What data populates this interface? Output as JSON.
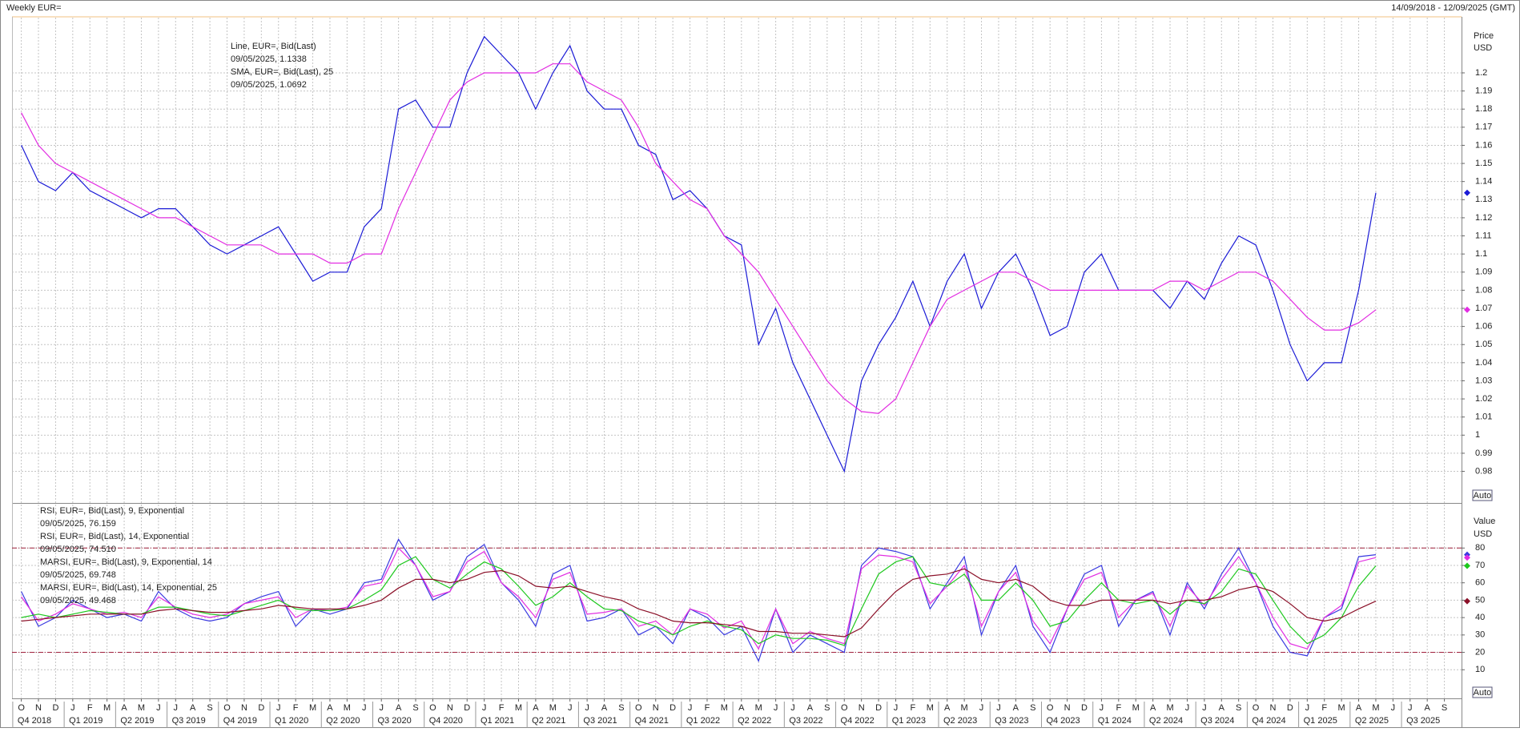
{
  "chart_data": [
    {
      "type": "line",
      "title": "Weekly EUR=",
      "subtitle": "14/09/2018 - 12/09/2025 (GMT)",
      "y_axis_title": "Price",
      "y_axis_unit": "USD",
      "scale_label": "Auto",
      "grid": true,
      "categories": [
        "O",
        "N",
        "D",
        "J",
        "F",
        "M",
        "A",
        "M",
        "J",
        "J",
        "A",
        "S",
        "O",
        "N",
        "D",
        "J",
        "F",
        "M",
        "A",
        "M",
        "J",
        "J",
        "A",
        "S",
        "O",
        "N",
        "D",
        "J",
        "F",
        "M",
        "A",
        "M",
        "J",
        "J",
        "A",
        "S",
        "O",
        "N",
        "D",
        "J",
        "F",
        "M",
        "A",
        "M",
        "J",
        "J",
        "A",
        "S",
        "O",
        "N",
        "D",
        "J",
        "F",
        "M",
        "A",
        "M",
        "J",
        "J",
        "A",
        "S",
        "O",
        "N",
        "D",
        "J",
        "F",
        "M",
        "A",
        "M",
        "J",
        "J",
        "A",
        "S",
        "O",
        "N",
        "D",
        "J",
        "F",
        "M",
        "A",
        "M",
        "J",
        "J",
        "A",
        "S"
      ],
      "quarters": [
        "Q4 2018",
        "Q1 2019",
        "Q2 2019",
        "Q3 2019",
        "Q4 2019",
        "Q1 2020",
        "Q2 2020",
        "Q3 2020",
        "Q4 2020",
        "Q1 2021",
        "Q2 2021",
        "Q3 2021",
        "Q4 2021",
        "Q1 2022",
        "Q2 2022",
        "Q3 2022",
        "Q4 2022",
        "Q1 2023",
        "Q2 2023",
        "Q3 2023",
        "Q4 2023",
        "Q1 2024",
        "Q2 2024",
        "Q3 2024",
        "Q4 2024",
        "Q1 2025",
        "Q2 2025",
        "Q3 2025"
      ],
      "ylim": [
        0.963,
        1.2305
      ],
      "yticks": [
        0.98,
        0.99,
        1,
        1.01,
        1.02,
        1.03,
        1.04,
        1.05,
        1.06,
        1.07,
        1.08,
        1.09,
        1.1,
        1.11,
        1.12,
        1.13,
        1.14,
        1.15,
        1.16,
        1.17,
        1.18,
        1.19,
        1.2
      ],
      "series": [
        {
          "name": "Line, EUR=, Bid(Last)",
          "last_label": "09/05/2025, 1.1338",
          "color": "#1a1ad6",
          "values": [
            1.16,
            1.14,
            1.135,
            1.145,
            1.135,
            1.13,
            1.125,
            1.12,
            1.125,
            1.125,
            1.115,
            1.105,
            1.1,
            1.105,
            1.11,
            1.115,
            1.1,
            1.085,
            1.09,
            1.09,
            1.115,
            1.125,
            1.18,
            1.185,
            1.17,
            1.17,
            1.2,
            1.22,
            1.21,
            1.2,
            1.18,
            1.2,
            1.215,
            1.19,
            1.18,
            1.18,
            1.16,
            1.155,
            1.13,
            1.135,
            1.125,
            1.11,
            1.105,
            1.05,
            1.07,
            1.04,
            1.02,
            1.0,
            0.98,
            1.03,
            1.05,
            1.065,
            1.085,
            1.06,
            1.085,
            1.1,
            1.07,
            1.09,
            1.1,
            1.08,
            1.055,
            1.06,
            1.09,
            1.1,
            1.08,
            1.08,
            1.08,
            1.07,
            1.085,
            1.075,
            1.095,
            1.11,
            1.105,
            1.08,
            1.05,
            1.03,
            1.04,
            1.04,
            1.08,
            1.1338,
            null,
            null,
            null,
            null
          ]
        },
        {
          "name": "SMA, EUR=, Bid(Last),  25",
          "last_label": "09/05/2025, 1.0692",
          "color": "#e22de2",
          "values": [
            1.178,
            1.16,
            1.15,
            1.145,
            1.14,
            1.135,
            1.13,
            1.125,
            1.12,
            1.12,
            1.115,
            1.11,
            1.105,
            1.105,
            1.105,
            1.1,
            1.1,
            1.1,
            1.095,
            1.095,
            1.1,
            1.1,
            1.125,
            1.145,
            1.165,
            1.185,
            1.195,
            1.2,
            1.2,
            1.2,
            1.2,
            1.205,
            1.205,
            1.195,
            1.19,
            1.185,
            1.17,
            1.15,
            1.14,
            1.13,
            1.125,
            1.11,
            1.1,
            1.09,
            1.075,
            1.06,
            1.045,
            1.03,
            1.02,
            1.013,
            1.012,
            1.02,
            1.04,
            1.06,
            1.075,
            1.08,
            1.085,
            1.09,
            1.09,
            1.085,
            1.08,
            1.08,
            1.08,
            1.08,
            1.08,
            1.08,
            1.08,
            1.085,
            1.085,
            1.08,
            1.085,
            1.09,
            1.09,
            1.085,
            1.075,
            1.065,
            1.058,
            1.058,
            1.062,
            1.0692,
            null,
            null,
            null,
            null
          ]
        }
      ]
    },
    {
      "type": "line",
      "y_axis_title": "Value",
      "y_axis_unit": "USD",
      "scale_label": "Auto",
      "grid": true,
      "ref_lines": [
        20,
        80
      ],
      "ref_color": "#a0203c",
      "ylim": [
        -6,
        105
      ],
      "yticks": [
        10,
        20,
        30,
        40,
        50,
        60,
        70,
        80
      ],
      "series": [
        {
          "name": "RSI, EUR=, Bid(Last),  9, Exponential",
          "last_label": "09/05/2025, 76.159",
          "color": "#3a3ae0",
          "values": [
            55,
            35,
            40,
            50,
            45,
            40,
            42,
            38,
            55,
            45,
            40,
            38,
            40,
            48,
            52,
            55,
            35,
            45,
            42,
            45,
            60,
            62,
            85,
            70,
            50,
            55,
            75,
            82,
            60,
            50,
            35,
            65,
            70,
            38,
            40,
            45,
            30,
            35,
            25,
            45,
            40,
            30,
            35,
            15,
            45,
            20,
            30,
            25,
            20,
            70,
            80,
            78,
            75,
            45,
            60,
            75,
            30,
            55,
            70,
            35,
            20,
            45,
            65,
            70,
            35,
            50,
            55,
            30,
            60,
            45,
            65,
            80,
            60,
            35,
            20,
            18,
            40,
            45,
            75,
            76.159,
            null,
            null,
            null,
            null
          ]
        },
        {
          "name": "RSI, EUR=, Bid(Last),  14, Exponential",
          "last_label": "09/05/2025, 74.510",
          "color": "#e22de2",
          "values": [
            52,
            38,
            42,
            48,
            45,
            42,
            43,
            40,
            52,
            46,
            42,
            40,
            42,
            48,
            50,
            52,
            40,
            45,
            44,
            46,
            58,
            60,
            80,
            70,
            52,
            55,
            72,
            78,
            60,
            52,
            40,
            62,
            66,
            42,
            43,
            45,
            35,
            38,
            30,
            45,
            42,
            34,
            38,
            22,
            45,
            25,
            32,
            28,
            25,
            68,
            76,
            75,
            72,
            48,
            58,
            70,
            35,
            55,
            66,
            38,
            25,
            45,
            62,
            66,
            40,
            50,
            54,
            35,
            58,
            47,
            62,
            75,
            60,
            40,
            25,
            22,
            40,
            47,
            72,
            74.51,
            null,
            null,
            null,
            null
          ]
        },
        {
          "name": "MARSI, EUR=, Bid(Last),  9, Exponential, 14",
          "last_label": "09/05/2025, 69.748",
          "color": "#1ec81e",
          "values": [
            40,
            42,
            40,
            42,
            44,
            43,
            42,
            42,
            46,
            46,
            44,
            42,
            41,
            44,
            47,
            50,
            45,
            44,
            44,
            45,
            50,
            56,
            70,
            75,
            62,
            57,
            65,
            72,
            68,
            58,
            47,
            52,
            60,
            52,
            45,
            44,
            38,
            35,
            30,
            35,
            38,
            35,
            33,
            25,
            30,
            28,
            28,
            27,
            24,
            45,
            65,
            72,
            75,
            60,
            58,
            65,
            50,
            50,
            60,
            50,
            35,
            38,
            50,
            60,
            50,
            48,
            50,
            42,
            50,
            48,
            55,
            68,
            65,
            50,
            35,
            25,
            30,
            40,
            58,
            69.748,
            null,
            null,
            null,
            null
          ]
        },
        {
          "name": "MARSI, EUR=, Bid(Last),  14, Exponential, 25",
          "last_label": "09/05/2025, 49.468",
          "color": "#8b1028",
          "values": [
            38,
            39,
            40,
            41,
            42,
            42,
            42,
            42,
            44,
            45,
            44,
            43,
            43,
            44,
            45,
            47,
            46,
            45,
            45,
            45,
            47,
            50,
            57,
            62,
            62,
            60,
            62,
            66,
            67,
            64,
            58,
            57,
            58,
            55,
            52,
            50,
            45,
            42,
            38,
            37,
            37,
            36,
            35,
            32,
            32,
            31,
            31,
            30,
            29,
            34,
            45,
            55,
            62,
            64,
            65,
            68,
            62,
            60,
            62,
            58,
            50,
            47,
            47,
            50,
            50,
            50,
            50,
            48,
            50,
            50,
            52,
            56,
            58,
            55,
            48,
            40,
            38,
            40,
            45,
            49.468,
            null,
            null,
            null,
            null
          ]
        }
      ]
    }
  ]
}
